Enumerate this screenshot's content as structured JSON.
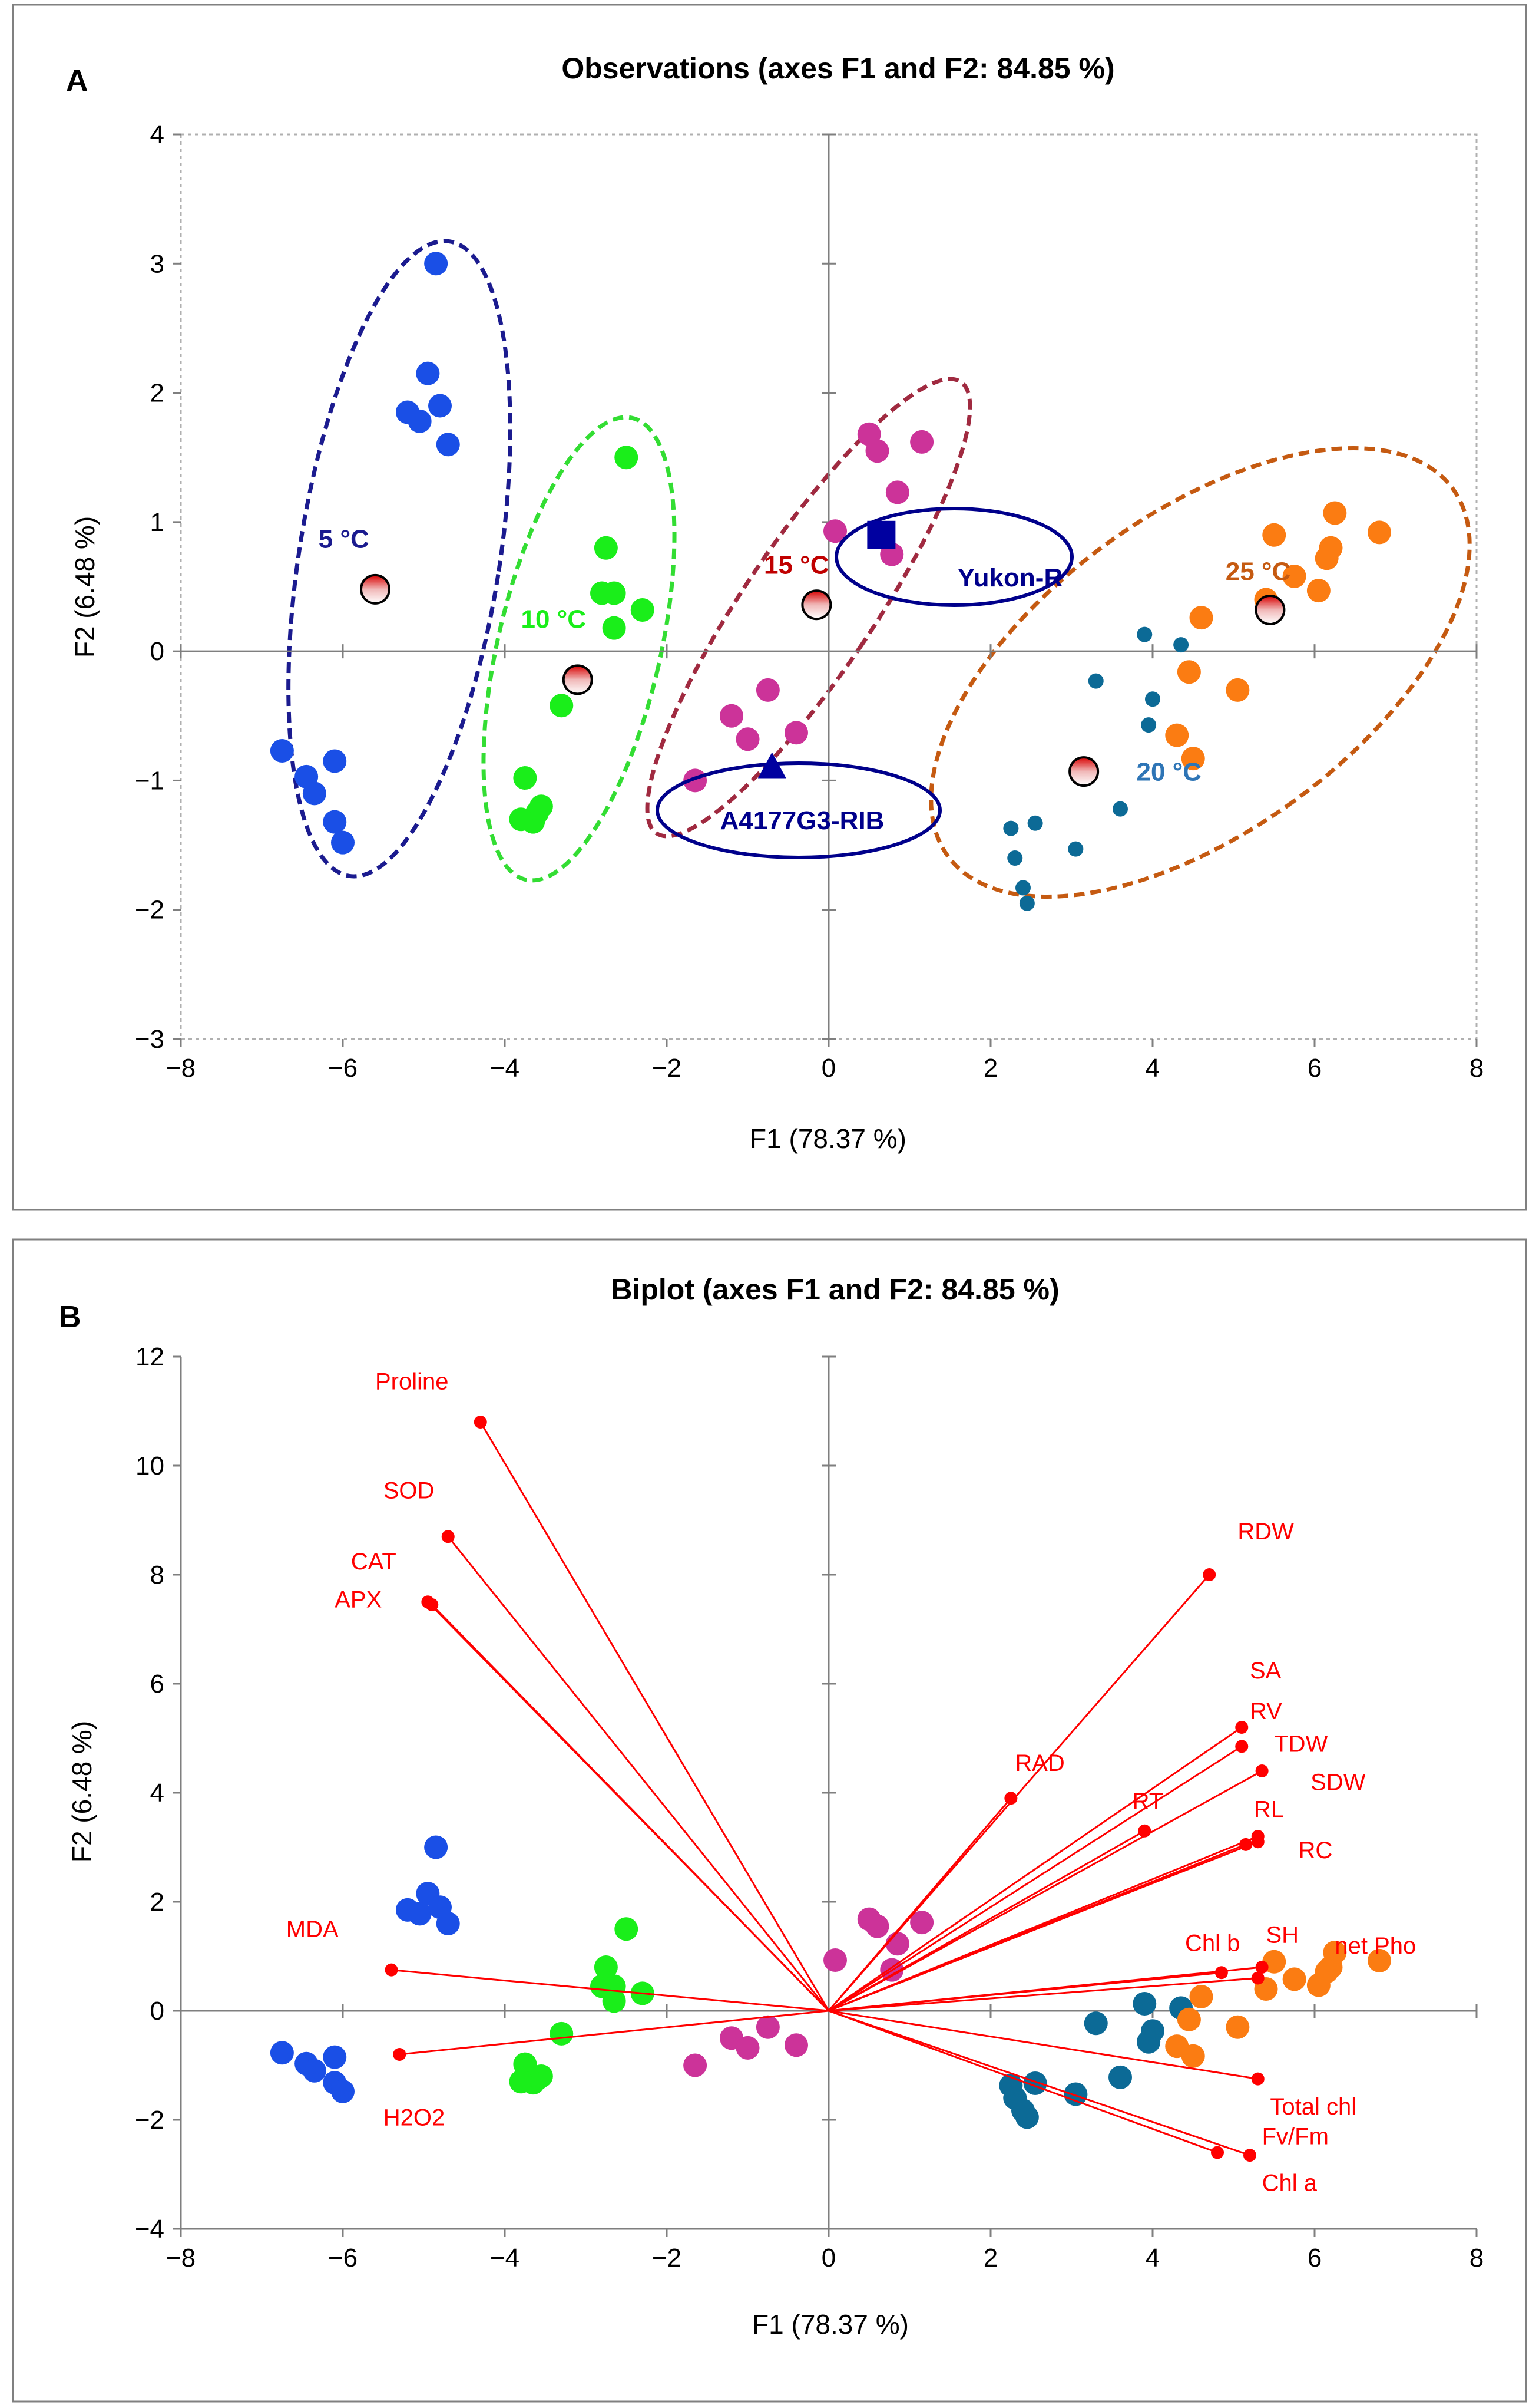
{
  "figure": {
    "panels": [
      "A",
      "B"
    ]
  },
  "chart_data": [
    {
      "id": "panelA",
      "type": "scatter",
      "panel_label": "A",
      "title": "Observations (axes F1 and F2: 84.85 %)",
      "xlabel": "F1 (78.37 %)",
      "ylabel": "F2 (6.48 %)",
      "xlim": [
        -8,
        8
      ],
      "ylim": [
        -3,
        4
      ],
      "xticks": [
        -8,
        -6,
        -4,
        -2,
        0,
        2,
        4,
        6,
        8
      ],
      "yticks": [
        -3,
        -2,
        -1,
        0,
        1,
        2,
        3,
        4
      ],
      "series": [
        {
          "name": "5 °C",
          "color": "#1a4fe6",
          "points": [
            [
              -4.85,
              3.0
            ],
            [
              -4.95,
              2.15
            ],
            [
              -5.2,
              1.85
            ],
            [
              -5.05,
              1.78
            ],
            [
              -4.8,
              1.9
            ],
            [
              -4.7,
              1.6
            ],
            [
              -6.75,
              -0.77
            ],
            [
              -6.45,
              -0.97
            ],
            [
              -6.35,
              -1.1
            ],
            [
              -6.1,
              -0.85
            ],
            [
              -6.1,
              -1.32
            ],
            [
              -6.0,
              -1.48
            ]
          ]
        },
        {
          "name": "10 °C",
          "color": "#1aee1a",
          "points": [
            [
              -2.5,
              1.5
            ],
            [
              -2.75,
              0.8
            ],
            [
              -2.8,
              0.45
            ],
            [
              -2.65,
              0.45
            ],
            [
              -2.3,
              0.32
            ],
            [
              -2.65,
              0.18
            ],
            [
              -3.3,
              -0.42
            ],
            [
              -3.75,
              -0.98
            ],
            [
              -3.55,
              -1.2
            ],
            [
              -3.6,
              -1.25
            ],
            [
              -3.65,
              -1.32
            ],
            [
              -3.8,
              -1.3
            ]
          ]
        },
        {
          "name": "15 °C",
          "color": "#cc3399",
          "points": [
            [
              0.5,
              1.68
            ],
            [
              0.6,
              1.55
            ],
            [
              1.15,
              1.62
            ],
            [
              0.85,
              1.23
            ],
            [
              0.08,
              0.93
            ],
            [
              0.78,
              0.75
            ],
            [
              -0.75,
              -0.3
            ],
            [
              -1.2,
              -0.5
            ],
            [
              -1.0,
              -0.68
            ],
            [
              -0.4,
              -0.63
            ],
            [
              -1.65,
              -1.0
            ]
          ]
        },
        {
          "name": "20 °C",
          "color": "#0c6a96",
          "points": [
            [
              3.9,
              0.13
            ],
            [
              4.35,
              0.05
            ],
            [
              3.3,
              -0.23
            ],
            [
              4.0,
              -0.37
            ],
            [
              3.95,
              -0.57
            ],
            [
              3.6,
              -1.22
            ],
            [
              2.55,
              -1.33
            ],
            [
              2.25,
              -1.37
            ],
            [
              3.05,
              -1.53
            ],
            [
              2.3,
              -1.6
            ],
            [
              2.4,
              -1.83
            ],
            [
              2.45,
              -1.95
            ]
          ]
        },
        {
          "name": "25 °C",
          "color": "#fb7c12",
          "points": [
            [
              6.25,
              1.07
            ],
            [
              6.8,
              0.92
            ],
            [
              5.5,
              0.9
            ],
            [
              6.2,
              0.8
            ],
            [
              6.15,
              0.72
            ],
            [
              5.75,
              0.58
            ],
            [
              6.05,
              0.47
            ],
            [
              5.4,
              0.4
            ],
            [
              4.6,
              0.26
            ],
            [
              4.45,
              -0.16
            ],
            [
              5.05,
              -0.3
            ],
            [
              4.3,
              -0.65
            ],
            [
              4.5,
              -0.83
            ]
          ]
        }
      ],
      "centroids": [
        {
          "name": "5 °C",
          "x": -5.6,
          "y": 0.48
        },
        {
          "name": "10 °C",
          "x": -3.1,
          "y": -0.22
        },
        {
          "name": "15 °C",
          "x": -0.15,
          "y": 0.36
        },
        {
          "name": "20 °C",
          "x": 3.15,
          "y": -0.93
        },
        {
          "name": "25 °C",
          "x": 5.45,
          "y": 0.32
        }
      ],
      "cultivars": [
        {
          "name": "Yukon-R",
          "marker": "square",
          "x": 0.65,
          "y": 0.9
        },
        {
          "name": "A4177G3-RIB",
          "marker": "triangle",
          "x": -0.7,
          "y": -0.9
        }
      ],
      "group_labels": [
        {
          "text": "5 °C",
          "color": "#1b1b8f",
          "x": -6.3,
          "y": 0.8
        },
        {
          "text": "10 °C",
          "color": "#1aee1a",
          "x": -3.8,
          "y": 0.18
        },
        {
          "text": "15 °C",
          "color": "#c00000",
          "x": -0.8,
          "y": 0.6
        },
        {
          "text": "20 °C",
          "color": "#2e75b6",
          "x": 3.8,
          "y": -1.0
        },
        {
          "text": "25 °C",
          "color": "#c55a11",
          "x": 4.9,
          "y": 0.55
        }
      ]
    },
    {
      "id": "panelB",
      "type": "scatter",
      "panel_label": "B",
      "title": "Biplot (axes F1 and F2: 84.85 %)",
      "xlabel": "F1 (78.37 %)",
      "ylabel": "F2 (6.48 %)",
      "xlim": [
        -8,
        8
      ],
      "ylim": [
        -4,
        12
      ],
      "xticks": [
        -8,
        -6,
        -4,
        -2,
        0,
        2,
        4,
        6,
        8
      ],
      "yticks": [
        -4,
        -2,
        0,
        2,
        4,
        6,
        8,
        10,
        12
      ],
      "series": [
        {
          "name": "5 °C",
          "color": "#1a4fe6",
          "points": [
            [
              -4.85,
              3.0
            ],
            [
              -4.95,
              2.15
            ],
            [
              -5.2,
              1.85
            ],
            [
              -5.05,
              1.78
            ],
            [
              -4.8,
              1.9
            ],
            [
              -4.7,
              1.6
            ],
            [
              -6.75,
              -0.77
            ],
            [
              -6.45,
              -0.97
            ],
            [
              -6.35,
              -1.1
            ],
            [
              -6.1,
              -0.85
            ],
            [
              -6.1,
              -1.32
            ],
            [
              -6.0,
              -1.48
            ]
          ]
        },
        {
          "name": "10 °C",
          "color": "#1aee1a",
          "points": [
            [
              -2.5,
              1.5
            ],
            [
              -2.75,
              0.8
            ],
            [
              -2.8,
              0.45
            ],
            [
              -2.65,
              0.45
            ],
            [
              -2.3,
              0.32
            ],
            [
              -2.65,
              0.18
            ],
            [
              -3.3,
              -0.42
            ],
            [
              -3.75,
              -0.98
            ],
            [
              -3.55,
              -1.2
            ],
            [
              -3.6,
              -1.25
            ],
            [
              -3.65,
              -1.32
            ],
            [
              -3.8,
              -1.3
            ]
          ]
        },
        {
          "name": "15 °C",
          "color": "#cc3399",
          "points": [
            [
              0.5,
              1.68
            ],
            [
              0.6,
              1.55
            ],
            [
              1.15,
              1.62
            ],
            [
              0.85,
              1.23
            ],
            [
              0.08,
              0.93
            ],
            [
              0.78,
              0.75
            ],
            [
              -0.75,
              -0.3
            ],
            [
              -1.2,
              -0.5
            ],
            [
              -1.0,
              -0.68
            ],
            [
              -0.4,
              -0.63
            ],
            [
              -1.65,
              -1.0
            ]
          ]
        },
        {
          "name": "20 °C",
          "color": "#0c6a96",
          "points": [
            [
              3.9,
              0.13
            ],
            [
              4.35,
              0.05
            ],
            [
              3.3,
              -0.23
            ],
            [
              4.0,
              -0.37
            ],
            [
              3.95,
              -0.57
            ],
            [
              3.6,
              -1.22
            ],
            [
              2.55,
              -1.33
            ],
            [
              2.25,
              -1.37
            ],
            [
              3.05,
              -1.53
            ],
            [
              2.3,
              -1.6
            ],
            [
              2.4,
              -1.83
            ],
            [
              2.45,
              -1.95
            ]
          ]
        },
        {
          "name": "25 °C",
          "color": "#fb7c12",
          "points": [
            [
              6.25,
              1.07
            ],
            [
              6.8,
              0.92
            ],
            [
              5.5,
              0.9
            ],
            [
              6.2,
              0.8
            ],
            [
              6.15,
              0.72
            ],
            [
              5.75,
              0.58
            ],
            [
              6.05,
              0.47
            ],
            [
              5.4,
              0.4
            ],
            [
              4.6,
              0.26
            ],
            [
              4.45,
              -0.16
            ],
            [
              5.05,
              -0.3
            ],
            [
              4.3,
              -0.65
            ],
            [
              4.5,
              -0.83
            ]
          ]
        }
      ],
      "vectors": [
        {
          "name": "Proline",
          "x": -4.3,
          "y": 10.8,
          "lx": -5.6,
          "ly": 11.4
        },
        {
          "name": "SOD",
          "x": -4.7,
          "y": 8.7,
          "lx": -5.5,
          "ly": 9.4
        },
        {
          "name": "CAT",
          "x": -4.95,
          "y": 7.5,
          "lx": -5.9,
          "ly": 8.1
        },
        {
          "name": "APX",
          "x": -4.9,
          "y": 7.45,
          "lx": -6.1,
          "ly": 7.4
        },
        {
          "name": "MDA",
          "x": -5.4,
          "y": 0.75,
          "lx": -6.7,
          "ly": 1.35
        },
        {
          "name": "H2O2",
          "x": -5.3,
          "y": -0.8,
          "lx": -5.5,
          "ly": -2.1
        },
        {
          "name": "RDW",
          "x": 4.7,
          "y": 8.0,
          "lx": 5.05,
          "ly": 8.65
        },
        {
          "name": "SA",
          "x": 5.1,
          "y": 5.2,
          "lx": 5.2,
          "ly": 6.1
        },
        {
          "name": "RV",
          "x": 5.1,
          "y": 4.85,
          "lx": 5.2,
          "ly": 5.35
        },
        {
          "name": "TDW",
          "x": 5.35,
          "y": 4.4,
          "lx": 5.5,
          "ly": 4.75
        },
        {
          "name": "SDW",
          "x": 5.3,
          "y": 3.2,
          "lx": 5.95,
          "ly": 4.05
        },
        {
          "name": "RAD",
          "x": 2.25,
          "y": 3.9,
          "lx": 2.3,
          "ly": 4.4
        },
        {
          "name": "RT",
          "x": 3.9,
          "y": 3.3,
          "lx": 3.75,
          "ly": 3.7
        },
        {
          "name": "RL",
          "x": 5.15,
          "y": 3.05,
          "lx": 5.25,
          "ly": 3.55
        },
        {
          "name": "RC",
          "x": 5.3,
          "y": 3.1,
          "lx": 5.8,
          "ly": 2.8
        },
        {
          "name": "Chl b",
          "x": 4.85,
          "y": 0.7,
          "lx": 4.4,
          "ly": 1.1
        },
        {
          "name": "SH",
          "x": 5.3,
          "y": 0.6,
          "lx": 5.4,
          "ly": 1.25
        },
        {
          "name": "net Pho",
          "x": 5.35,
          "y": 0.8,
          "lx": 6.25,
          "ly": 1.05
        },
        {
          "name": "Total chl",
          "x": 5.3,
          "y": -1.25,
          "lx": 5.45,
          "ly": -1.9
        },
        {
          "name": "Fv/Fm",
          "x": 4.8,
          "y": -2.6,
          "lx": 5.35,
          "ly": -2.45
        },
        {
          "name": "Chl a",
          "x": 5.2,
          "y": -2.65,
          "lx": 5.35,
          "ly": -3.3
        }
      ]
    }
  ]
}
